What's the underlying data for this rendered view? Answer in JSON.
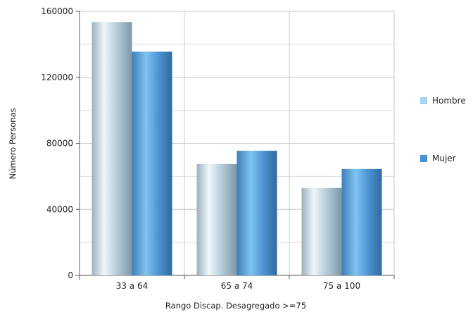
{
  "chart_data": {
    "type": "bar",
    "categories": [
      "33 a 64",
      "65 a 74",
      "75 a 100"
    ],
    "series": [
      {
        "name": "Hombre",
        "values": [
          153500,
          67500,
          53000
        ]
      },
      {
        "name": "Mujer",
        "values": [
          135500,
          75500,
          64500
        ]
      }
    ],
    "xlabel": "Rango Discap. Desagregado >=75",
    "ylabel": "Número Personas",
    "ylim": [
      0,
      160000
    ],
    "yticks": [
      0,
      40000,
      80000,
      120000,
      160000
    ],
    "grid": true,
    "legend_position": "right",
    "colors": {
      "Hombre": "#a9d3f2",
      "Mujer": "#4a8fcf",
      "grid": "#c8c8c8"
    }
  }
}
